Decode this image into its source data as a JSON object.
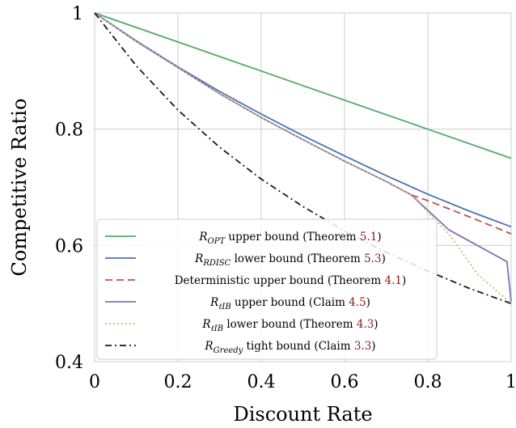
{
  "chart_data": {
    "type": "line",
    "xlabel": "Discount Rate",
    "ylabel": "Competitive Ratio",
    "xlim": [
      0,
      1
    ],
    "ylim": [
      0.4,
      1
    ],
    "xticks": [
      "0",
      "0.2",
      "0.4",
      "0.6",
      "0.8",
      "1"
    ],
    "xtick_values": [
      0,
      0.2,
      0.4,
      0.6,
      0.8,
      1
    ],
    "yticks": [
      "0.4",
      "0.6",
      "0.8",
      "1"
    ],
    "ytick_values": [
      0.4,
      0.6,
      0.8,
      1
    ],
    "grid": true,
    "legend_placement": "lower-left",
    "series": [
      {
        "name": "R_OPT upper bound (Theorem 5.1)",
        "legend": {
          "r": "R",
          "sub": "OPT",
          "text": " upper bound (Theorem ",
          "ref": "5.1",
          "close": ")"
        },
        "color": "#55a868",
        "dash": "solid",
        "x": [
          0,
          0.2,
          0.4,
          0.6,
          0.8,
          1
        ],
        "y": [
          1,
          0.95,
          0.9,
          0.85,
          0.8,
          0.75
        ]
      },
      {
        "name": "R_RDISC lower bound (Theorem 5.3)",
        "legend": {
          "r": "R",
          "sub": "RDISC",
          "text": " lower bound (Theorem ",
          "ref": "5.3",
          "close": ")"
        },
        "color": "#4c72b0",
        "dash": "solid",
        "x": [
          0,
          0.1,
          0.2,
          0.3,
          0.4,
          0.5,
          0.6,
          0.7,
          0.8,
          0.9,
          1
        ],
        "y": [
          1,
          0.952,
          0.907,
          0.865,
          0.826,
          0.789,
          0.754,
          0.72,
          0.688,
          0.659,
          0.632
        ]
      },
      {
        "name": "Deterministic upper bound (Theorem 4.1)",
        "legend": {
          "r": "",
          "sub": "",
          "text": "Deterministic upper bound (Theorem ",
          "ref": "4.1",
          "close": ")"
        },
        "color": "#c44e52",
        "dash": "dashed",
        "x": [
          0.76,
          0.8,
          0.9,
          1
        ],
        "y": [
          0.687,
          0.677,
          0.649,
          0.62
        ]
      },
      {
        "name": "R_ℓIB upper bound (Claim 4.5)",
        "legend": {
          "r": "R",
          "sub": "ℓIB",
          "text": " upper bound (Claim ",
          "ref": "4.5",
          "close": ")"
        },
        "color": "#8172b2",
        "dash": "solid",
        "x": [
          0,
          0.1,
          0.2,
          0.3,
          0.4,
          0.5,
          0.6,
          0.7,
          0.76,
          0.85,
          0.99,
          1
        ],
        "y": [
          1,
          0.951,
          0.906,
          0.861,
          0.82,
          0.782,
          0.745,
          0.71,
          0.687,
          0.627,
          0.572,
          0.503
        ]
      },
      {
        "name": "R_ℓIB lower bound (Theorem 4.3)",
        "legend": {
          "r": "R",
          "sub": "ℓIB",
          "text": " lower bound (Theorem ",
          "ref": "4.3",
          "close": ")"
        },
        "color": "#ccb974",
        "dash": "dotted",
        "x": [
          0,
          0.1,
          0.2,
          0.3,
          0.4,
          0.5,
          0.6,
          0.7,
          0.76,
          0.85,
          0.92,
          1
        ],
        "y": [
          1,
          0.951,
          0.906,
          0.861,
          0.82,
          0.782,
          0.745,
          0.71,
          0.687,
          0.62,
          0.55,
          0.5
        ]
      },
      {
        "name": "R_Greedy tight bound (Claim 3.3)",
        "legend": {
          "r": "R",
          "sub": "Greedy",
          "text": " tight bound (Claim ",
          "ref": "3.3",
          "close": ")"
        },
        "color": "#1a1a1a",
        "dash": "dashdot",
        "x": [
          0,
          0.1,
          0.2,
          0.3,
          0.4,
          0.5,
          0.6,
          0.7,
          0.8,
          0.9,
          1
        ],
        "y": [
          1,
          0.909,
          0.833,
          0.769,
          0.714,
          0.667,
          0.625,
          0.588,
          0.556,
          0.526,
          0.5
        ]
      }
    ]
  }
}
